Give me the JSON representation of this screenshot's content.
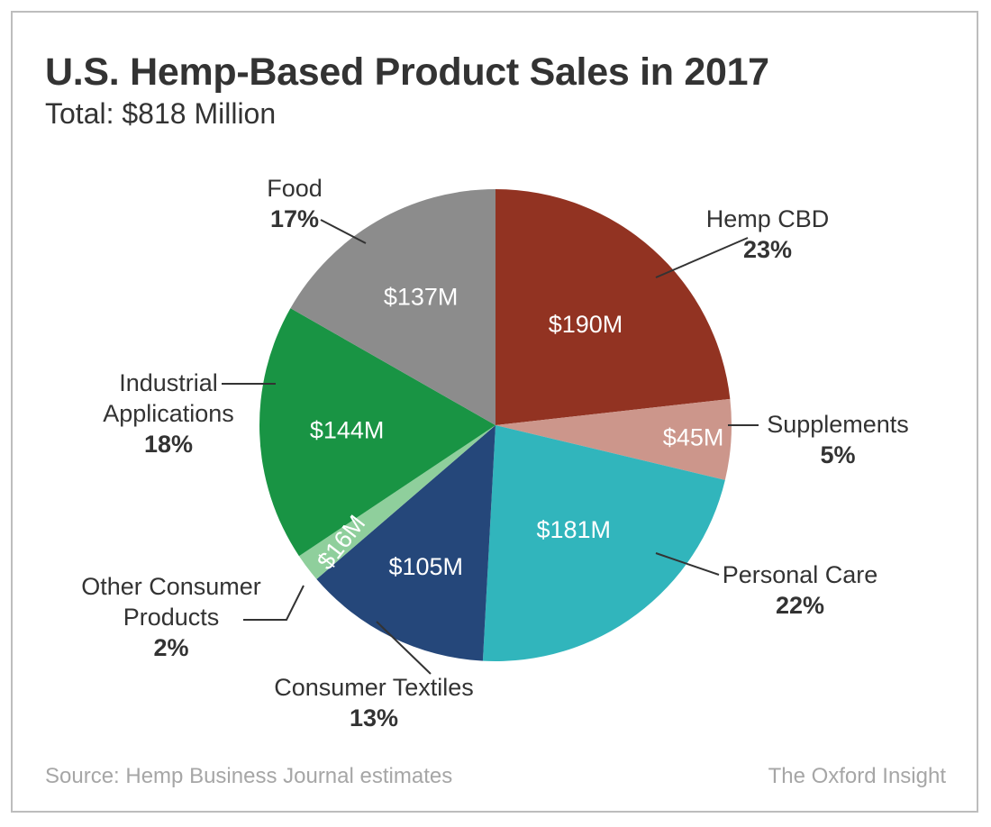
{
  "title": "U.S. Hemp-Based Product Sales in 2017",
  "subtitle": "Total: $818 Million",
  "source": "Source: Hemp Business Journal estimates",
  "brand": "The Oxford Insight",
  "chart_data": {
    "type": "pie",
    "title": "U.S. Hemp-Based Product Sales in 2017",
    "subtitle": "Total: $818 Million",
    "unit": "$ Million",
    "slices": [
      {
        "name": "Hemp CBD",
        "value": 190,
        "value_label": "$190M",
        "percent": 23,
        "percent_label": "23%",
        "color": "#923322"
      },
      {
        "name": "Supplements",
        "value": 45,
        "value_label": "$45M",
        "percent": 5,
        "percent_label": "5%",
        "color": "#cc968b"
      },
      {
        "name": "Personal Care",
        "value": 181,
        "value_label": "$181M",
        "percent": 22,
        "percent_label": "22%",
        "color": "#31b5bc"
      },
      {
        "name": "Consumer Textiles",
        "value": 105,
        "value_label": "$105M",
        "percent": 13,
        "percent_label": "13%",
        "color": "#25477a"
      },
      {
        "name": "Other Consumer Products",
        "name_lines": [
          "Other Consumer",
          "Products"
        ],
        "value": 16,
        "value_label": "$16M",
        "percent": 2,
        "percent_label": "2%",
        "color": "#8fcf9c"
      },
      {
        "name": "Industrial Applications",
        "name_lines": [
          "Industrial",
          "Applications"
        ],
        "value": 144,
        "value_label": "$144M",
        "percent": 18,
        "percent_label": "18%",
        "color": "#199444"
      },
      {
        "name": "Food",
        "value": 137,
        "value_label": "$137M",
        "percent": 17,
        "percent_label": "17%",
        "color": "#8c8c8c"
      }
    ]
  }
}
